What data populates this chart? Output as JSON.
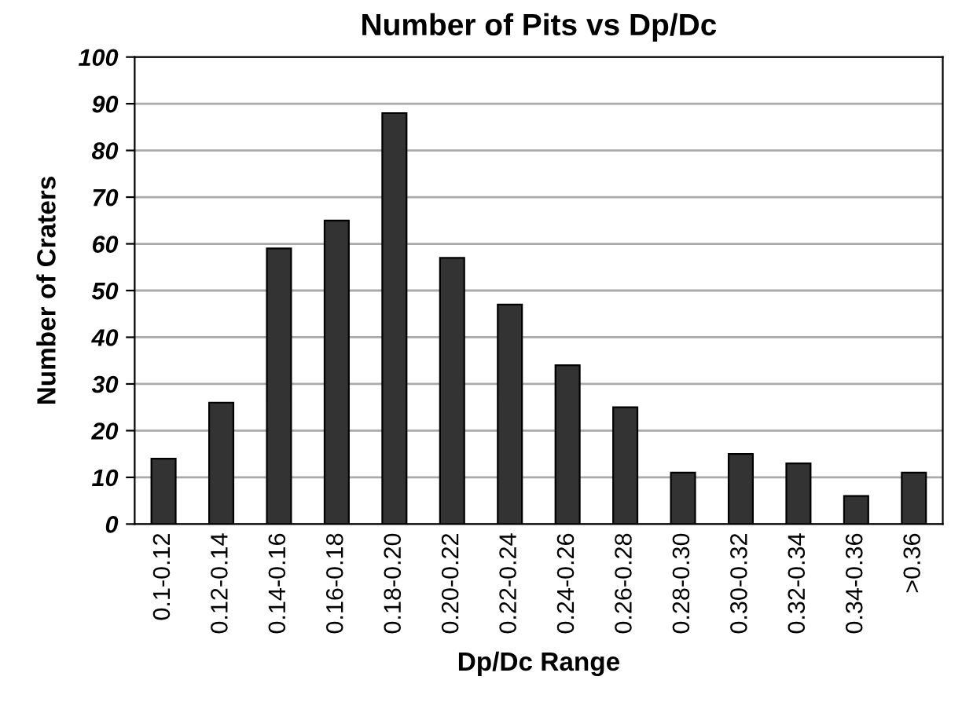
{
  "chart_data": {
    "type": "bar",
    "title": "Number of Pits vs Dp/Dc",
    "xlabel": "Dp/Dc Range",
    "ylabel": "Number of Craters",
    "categories": [
      "0.1-0.12",
      "0.12-0.14",
      "0.14-0.16",
      "0.16-0.18",
      "0.18-0.20",
      "0.20-0.22",
      "0.22-0.24",
      "0.24-0.26",
      "0.26-0.28",
      "0.28-0.30",
      "0.30-0.32",
      "0.32-0.34",
      "0.34-0.36",
      ">0.36"
    ],
    "values": [
      14,
      26,
      59,
      65,
      88,
      57,
      47,
      34,
      25,
      11,
      15,
      13,
      6,
      11
    ],
    "color": "#333333",
    "ylim": [
      0,
      100
    ],
    "yticks": [
      0,
      10,
      20,
      30,
      40,
      50,
      60,
      70,
      80,
      90,
      100
    ],
    "grid": "y",
    "legend": false
  }
}
